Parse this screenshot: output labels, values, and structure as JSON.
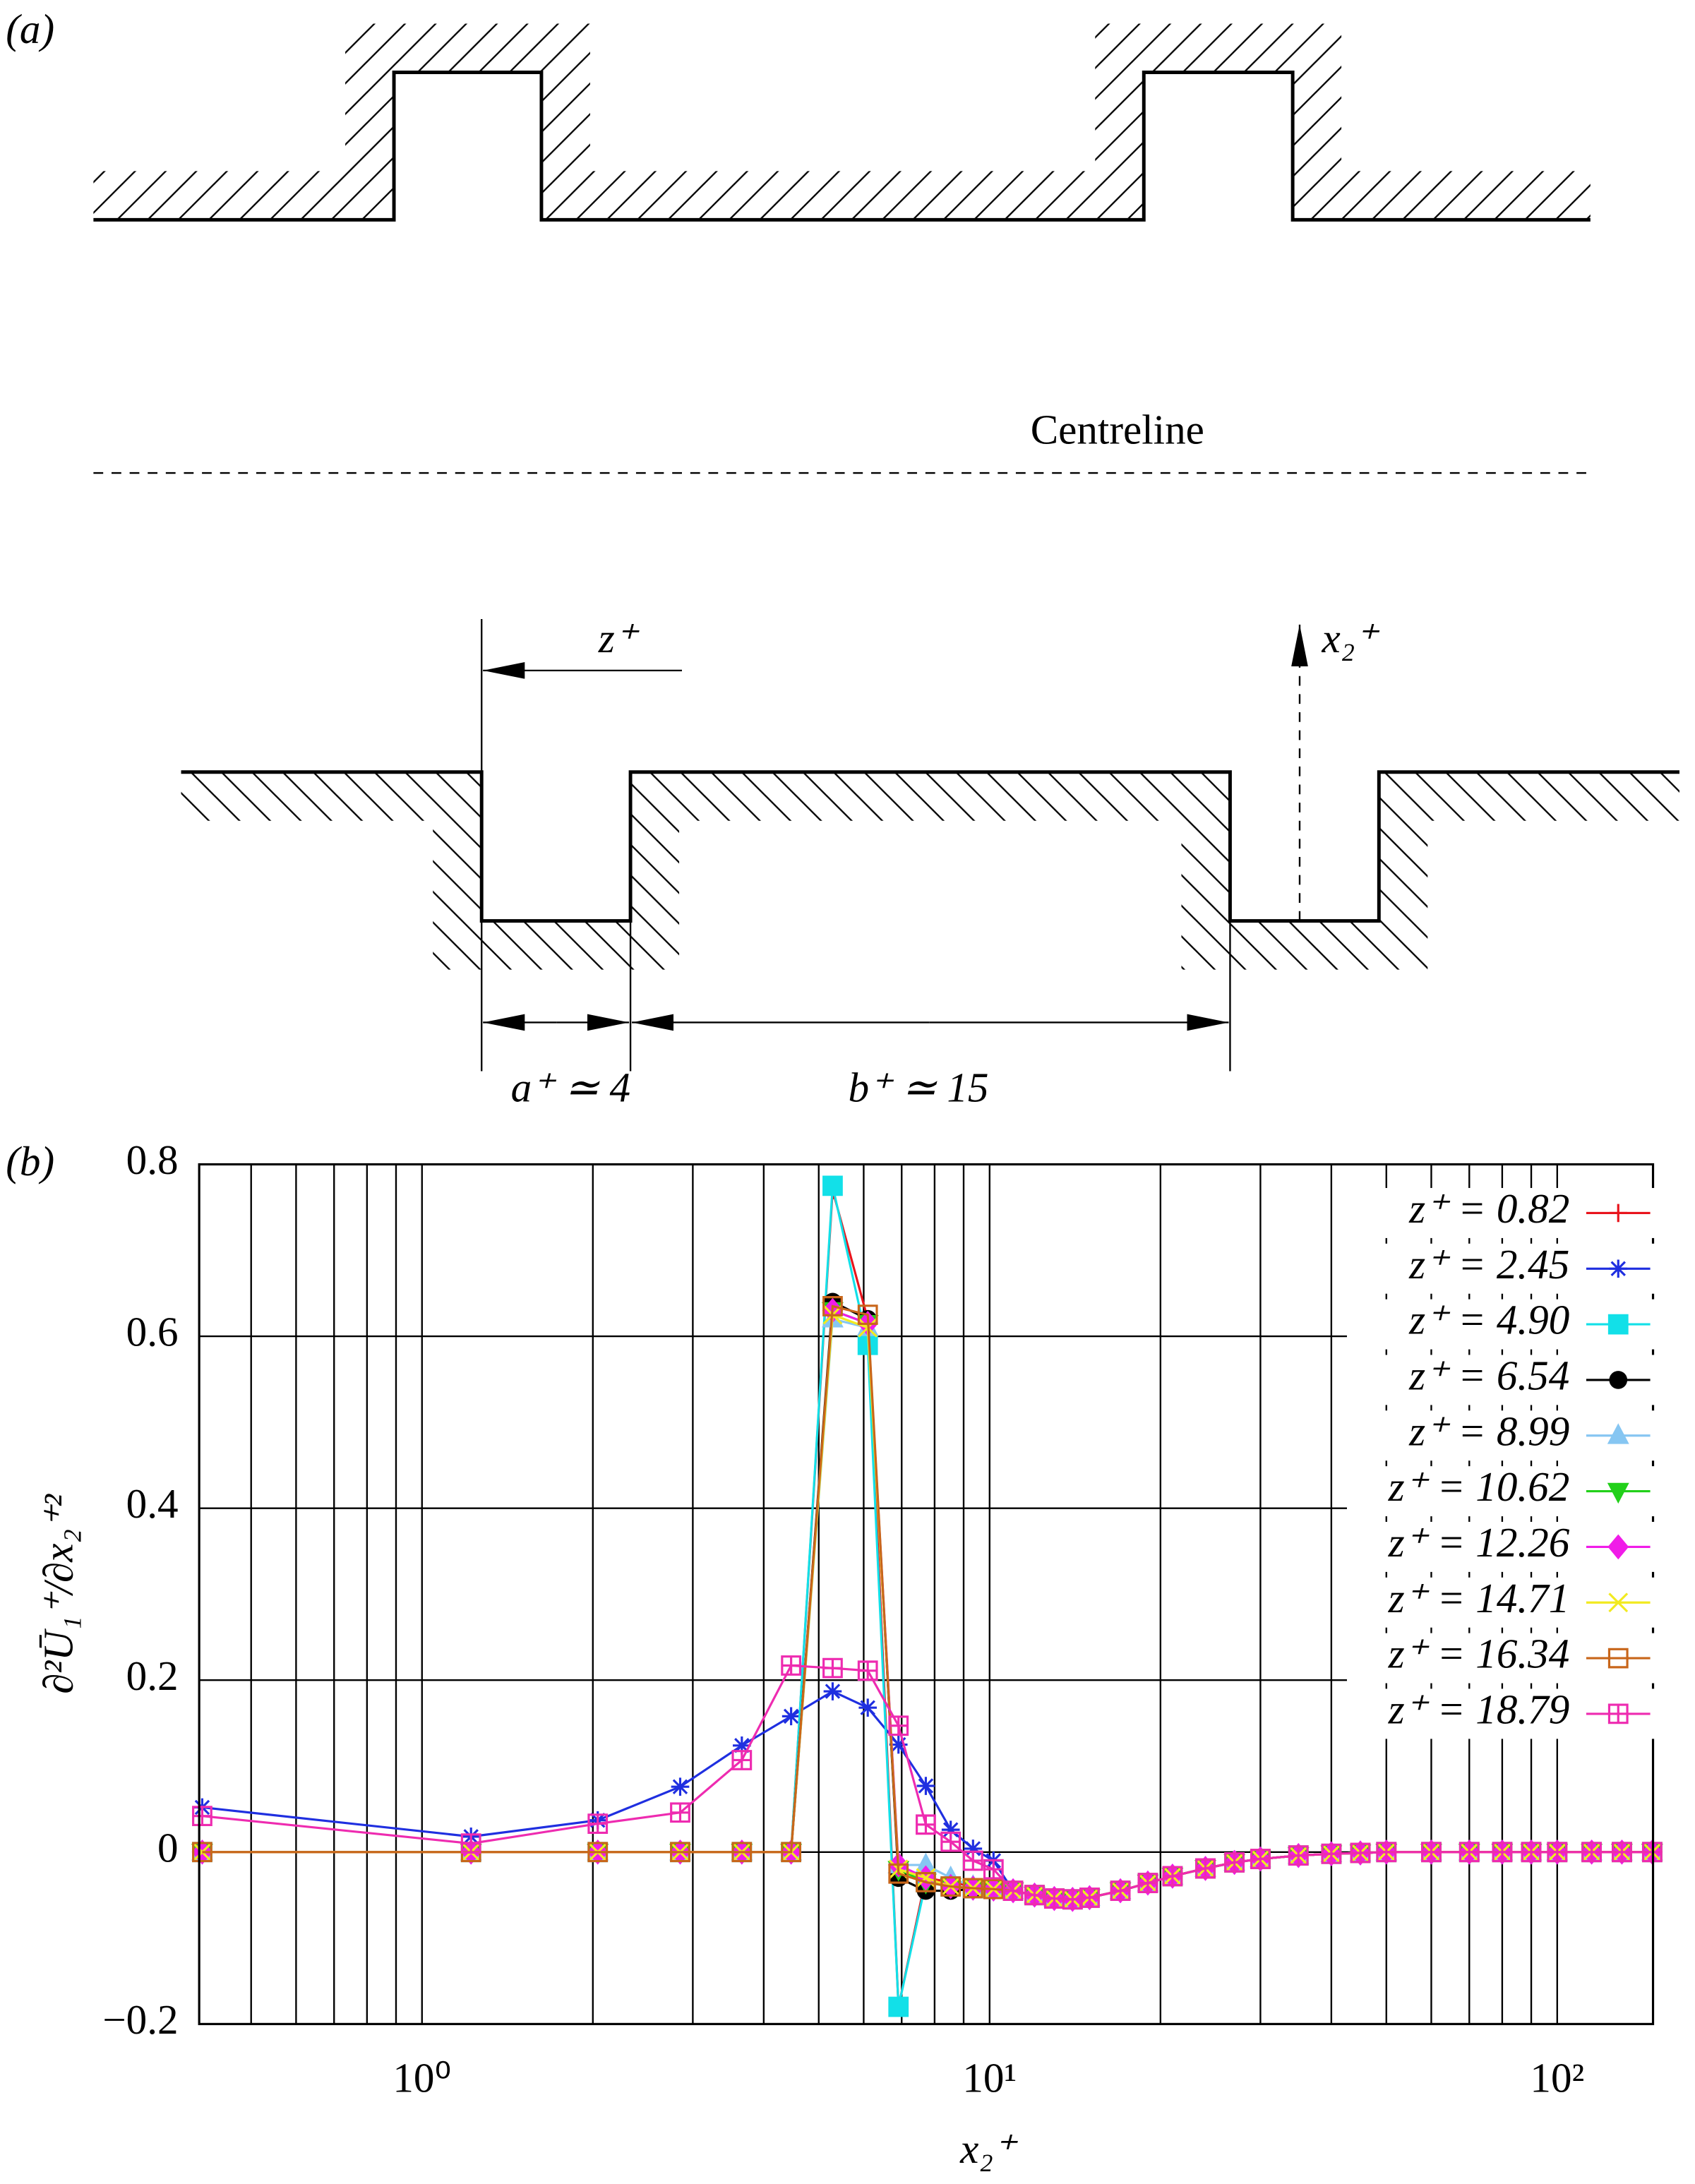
{
  "panel_a": {
    "label": "(a)",
    "centreline": "Centreline",
    "z_label": "z⁺",
    "x2_label": "x₂⁺",
    "a_label": "a⁺ ≃ 4",
    "b_label": "b⁺ ≃ 15"
  },
  "chart_data": {
    "type": "line",
    "panel_label": "(b)",
    "x_label": "x₂⁺",
    "y_label": "∂²Ū₁⁺/∂x₂⁺²",
    "log_x": true,
    "grid": true,
    "legend": "upper right",
    "xlim": [
      0.405,
      147.5
    ],
    "ylim": [
      -0.2,
      0.8
    ],
    "xticks": [
      {
        "value": 1,
        "label": "10⁰"
      },
      {
        "value": 10,
        "label": "10¹"
      },
      {
        "value": 100,
        "label": "10²"
      }
    ],
    "xminorticks": [
      0.5,
      0.6,
      0.7,
      0.8,
      0.9,
      2,
      3,
      4,
      5,
      6,
      7,
      8,
      9,
      20,
      30,
      40,
      50,
      60,
      70,
      80,
      90
    ],
    "yticks": [
      {
        "value": -0.2,
        "label": "−0.2"
      },
      0,
      0.2,
      0.4,
      0.6,
      0.8
    ],
    "x": [
      0.41,
      1.22,
      2.04,
      2.85,
      3.66,
      4.47,
      5.29,
      6.1,
      6.91,
      7.72,
      8.54,
      9.35,
      10.16,
      11,
      12,
      13,
      14,
      15,
      17,
      19,
      21,
      24,
      27,
      30,
      35,
      40,
      45,
      50,
      60,
      70,
      80,
      90,
      100,
      115,
      130,
      147
    ],
    "series": [
      {
        "name": "z⁺ = 0.82",
        "color": "#e8141c",
        "marker": "plus",
        "values": [
          0,
          0,
          0,
          0,
          0,
          0,
          0.77,
          0.62,
          -0.18,
          -0.03,
          -0.035,
          -0.04,
          -0.042,
          -0.045,
          -0.05,
          -0.054,
          -0.055,
          -0.053,
          -0.045,
          -0.036,
          -0.028,
          -0.019,
          -0.012,
          -0.008,
          -0.004,
          -0.002,
          -0.001,
          0,
          0,
          0,
          0,
          0,
          0,
          0,
          0,
          0
        ]
      },
      {
        "name": "z⁺ = 2.45",
        "color": "#1f2fe0",
        "marker": "star",
        "values": [
          0.052,
          0.018,
          0.037,
          0.076,
          0.124,
          0.158,
          0.187,
          0.168,
          0.125,
          0.077,
          0.026,
          0.004,
          -0.01,
          -0.045,
          -0.05,
          -0.054,
          -0.055,
          -0.053,
          -0.045,
          -0.036,
          -0.028,
          -0.019,
          -0.012,
          -0.008,
          -0.004,
          -0.002,
          -0.001,
          0,
          0,
          0,
          0,
          0,
          0,
          0,
          0,
          0
        ]
      },
      {
        "name": "z⁺ = 4.90",
        "color": "#12e0e8",
        "marker": "square",
        "values": [
          0,
          0,
          0,
          0,
          0,
          0,
          0.775,
          0.59,
          -0.18,
          -0.035,
          -0.04,
          -0.042,
          -0.043,
          -0.045,
          -0.05,
          -0.054,
          -0.055,
          -0.053,
          -0.045,
          -0.036,
          -0.028,
          -0.019,
          -0.012,
          -0.008,
          -0.004,
          -0.002,
          -0.001,
          0,
          0,
          0,
          0,
          0,
          0,
          0,
          0,
          0
        ]
      },
      {
        "name": "z⁺ = 6.54",
        "color": "#000000",
        "marker": "circle",
        "values": [
          0,
          0,
          0,
          0,
          0,
          0,
          0.64,
          0.62,
          -0.03,
          -0.045,
          -0.045,
          -0.043,
          -0.043,
          -0.045,
          -0.05,
          -0.054,
          -0.055,
          -0.053,
          -0.045,
          -0.036,
          -0.028,
          -0.019,
          -0.012,
          -0.008,
          -0.004,
          -0.002,
          -0.001,
          0,
          0,
          0,
          0,
          0,
          0,
          0,
          0,
          0
        ]
      },
      {
        "name": "z⁺ = 8.99",
        "color": "#86c6f2",
        "marker": "triangle",
        "values": [
          0,
          0,
          0,
          0,
          0,
          0,
          0.62,
          0.61,
          -0.015,
          -0.015,
          -0.03,
          -0.04,
          -0.043,
          -0.045,
          -0.05,
          -0.054,
          -0.055,
          -0.053,
          -0.045,
          -0.036,
          -0.028,
          -0.019,
          -0.012,
          -0.008,
          -0.004,
          -0.002,
          -0.001,
          0,
          0,
          0,
          0,
          0,
          0,
          0,
          0,
          0
        ]
      },
      {
        "name": "z⁺ = 10.62",
        "color": "#22d01a",
        "marker": "triangle-down",
        "values": [
          0,
          0,
          0,
          0,
          0,
          0,
          0.63,
          0.615,
          -0.02,
          -0.035,
          -0.04,
          -0.042,
          -0.043,
          -0.045,
          -0.05,
          -0.054,
          -0.055,
          -0.053,
          -0.045,
          -0.036,
          -0.028,
          -0.019,
          -0.012,
          -0.008,
          -0.004,
          -0.002,
          -0.001,
          0,
          0,
          0,
          0,
          0,
          0,
          0,
          0,
          0
        ]
      },
      {
        "name": "z⁺ = 12.26",
        "color": "#f01ce8",
        "marker": "diamond",
        "values": [
          0,
          0,
          0,
          0,
          0,
          0,
          0.63,
          0.615,
          -0.015,
          -0.03,
          -0.04,
          -0.042,
          -0.043,
          -0.045,
          -0.05,
          -0.054,
          -0.055,
          -0.053,
          -0.045,
          -0.036,
          -0.028,
          -0.019,
          -0.012,
          -0.008,
          -0.004,
          -0.002,
          -0.001,
          0,
          0,
          0,
          0,
          0,
          0,
          0,
          0,
          0
        ]
      },
      {
        "name": "z⁺ = 14.71",
        "color": "#f2ea20",
        "marker": "x",
        "values": [
          0,
          0,
          0,
          0,
          0,
          0,
          0.625,
          0.61,
          -0.02,
          -0.03,
          -0.04,
          -0.042,
          -0.043,
          -0.045,
          -0.05,
          -0.054,
          -0.055,
          -0.053,
          -0.045,
          -0.036,
          -0.028,
          -0.019,
          -0.012,
          -0.008,
          -0.004,
          -0.002,
          -0.001,
          0,
          0,
          0,
          0,
          0,
          0,
          0,
          0,
          0
        ]
      },
      {
        "name": "z⁺ = 16.34",
        "color": "#c8661a",
        "marker": "square-open",
        "values": [
          0,
          0,
          0,
          0,
          0,
          0,
          0.635,
          0.625,
          -0.025,
          -0.035,
          -0.04,
          -0.042,
          -0.043,
          -0.045,
          -0.05,
          -0.054,
          -0.055,
          -0.053,
          -0.045,
          -0.036,
          -0.028,
          -0.019,
          -0.012,
          -0.008,
          -0.004,
          -0.002,
          -0.001,
          0,
          0,
          0,
          0,
          0,
          0,
          0,
          0,
          0
        ]
      },
      {
        "name": "z⁺ = 18.79",
        "color": "#ee2bb0",
        "marker": "plus-square",
        "values": [
          0.042,
          0.01,
          0.033,
          0.046,
          0.107,
          0.217,
          0.214,
          0.211,
          0.147,
          0.032,
          0.012,
          -0.01,
          -0.02,
          -0.045,
          -0.05,
          -0.054,
          -0.055,
          -0.053,
          -0.045,
          -0.036,
          -0.028,
          -0.019,
          -0.012,
          -0.008,
          -0.004,
          -0.002,
          -0.001,
          0,
          0,
          0,
          0,
          0,
          0,
          0,
          0,
          0
        ]
      }
    ]
  }
}
